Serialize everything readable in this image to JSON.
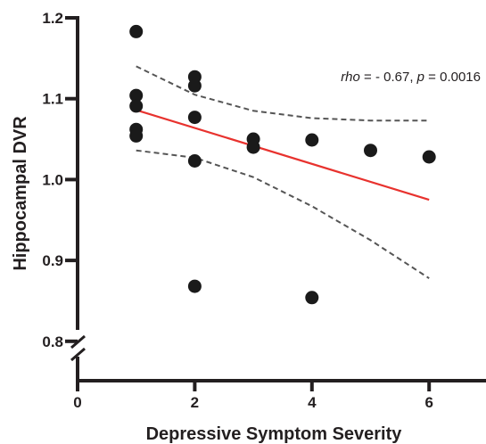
{
  "chart_data": {
    "type": "scatter",
    "title": "",
    "xlabel": "Depressive Symptom Severity",
    "ylabel": "Hippocampal DVR",
    "xlim": [
      0,
      7
    ],
    "ylim": [
      0.8,
      1.2
    ],
    "x_ticks": [
      "0",
      "2",
      "4",
      "6"
    ],
    "y_ticks": [
      "0.8",
      "0.9",
      "1.0",
      "1.1",
      "1.2"
    ],
    "y_axis_break": true,
    "grid": false,
    "annotation": {
      "rho_label": "rho",
      "rho_rest": " = - 0.67, ",
      "p_label": "p",
      "p_rest": " = 0.0016"
    },
    "points": [
      {
        "x": 1,
        "y": 1.183
      },
      {
        "x": 1,
        "y": 1.104
      },
      {
        "x": 1,
        "y": 1.091
      },
      {
        "x": 1,
        "y": 1.062
      },
      {
        "x": 1,
        "y": 1.054
      },
      {
        "x": 2,
        "y": 1.127
      },
      {
        "x": 2,
        "y": 1.116
      },
      {
        "x": 2,
        "y": 1.077
      },
      {
        "x": 2,
        "y": 1.023
      },
      {
        "x": 2,
        "y": 0.868
      },
      {
        "x": 3,
        "y": 1.05
      },
      {
        "x": 3,
        "y": 1.04
      },
      {
        "x": 4,
        "y": 1.049
      },
      {
        "x": 4,
        "y": 0.854
      },
      {
        "x": 5,
        "y": 1.036
      },
      {
        "x": 6,
        "y": 1.028
      }
    ],
    "fit_line": {
      "color": "#e8322e",
      "x": [
        1,
        6
      ],
      "y": [
        1.086,
        0.975
      ]
    },
    "ci_bands": {
      "color": "#555555",
      "x": [
        1,
        2,
        3,
        4,
        5,
        6
      ],
      "upper": [
        1.14,
        1.105,
        1.085,
        1.076,
        1.073,
        1.073
      ],
      "lower": [
        1.036,
        1.027,
        1.003,
        0.967,
        0.925,
        0.878
      ]
    },
    "point_color": "#1a1a1a",
    "axis_color": "#231f20"
  }
}
